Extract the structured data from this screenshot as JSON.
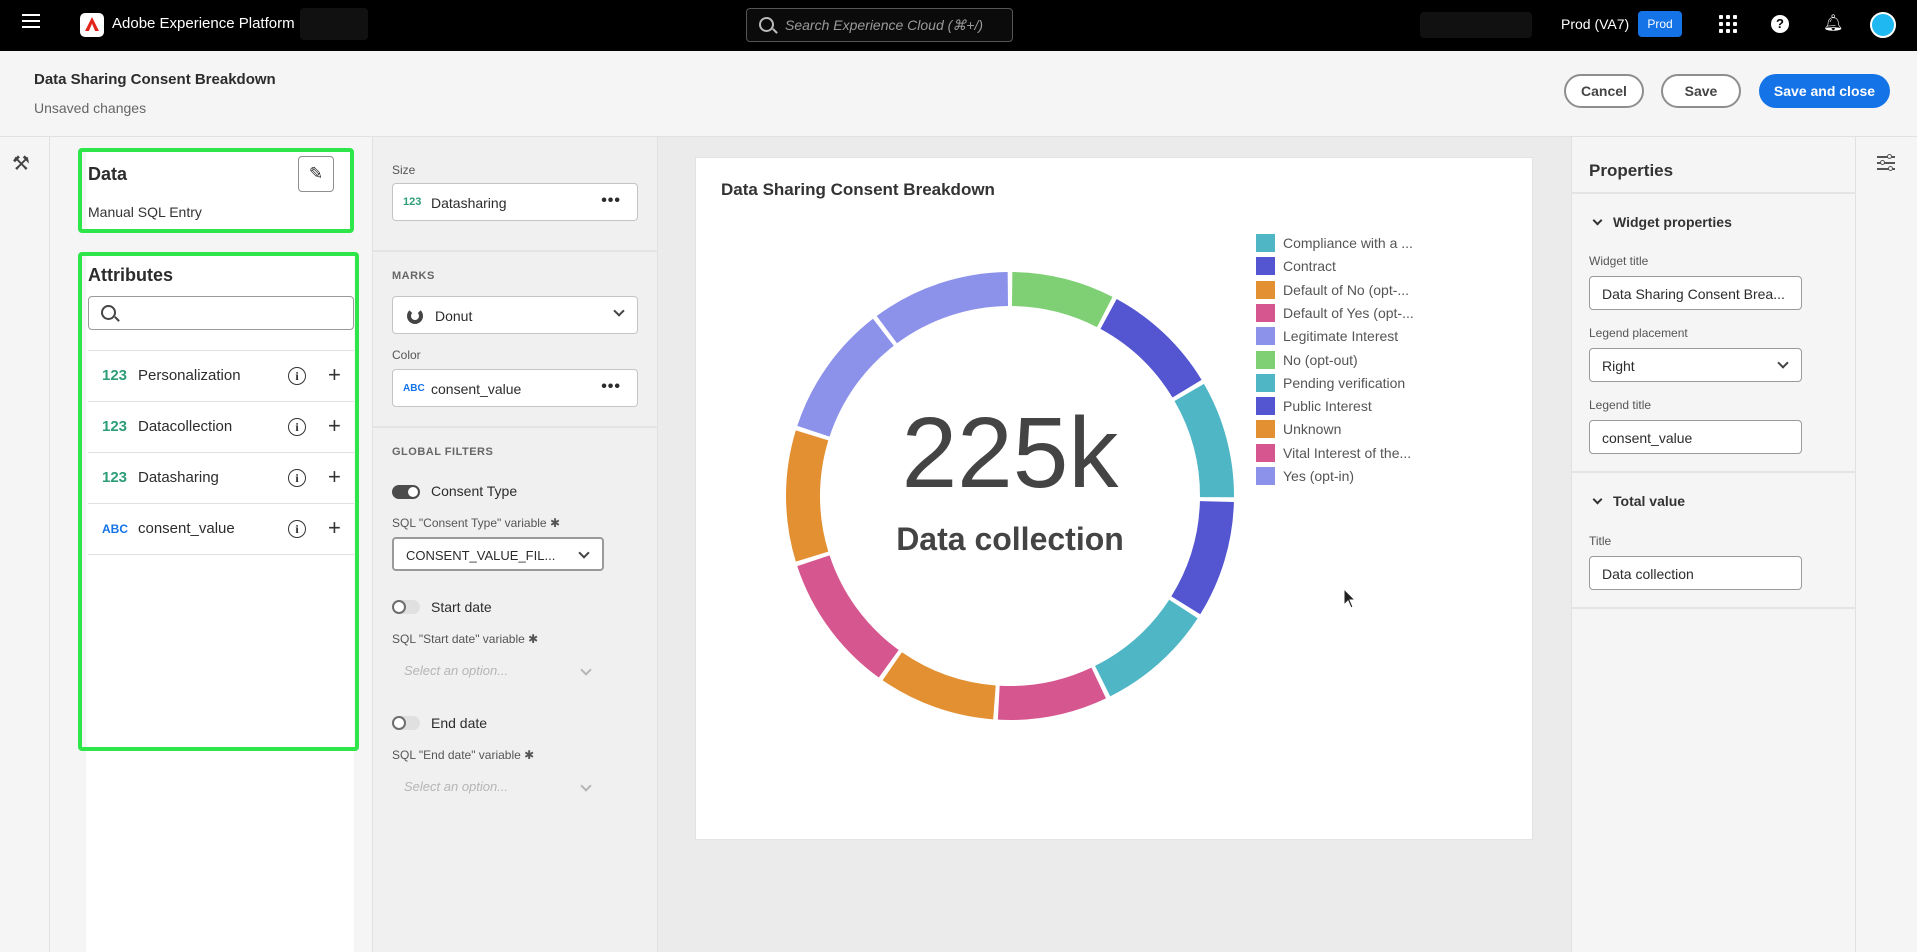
{
  "topbar": {
    "app_name": "Adobe Experience Platform",
    "search_placeholder": "Search Experience Cloud (⌘+/)",
    "org_name": "Prod (VA7)",
    "sandbox_badge": "Prod"
  },
  "header": {
    "title": "Data Sharing Consent Breakdown",
    "subtitle": "Unsaved changes",
    "cancel_label": "Cancel",
    "save_label": "Save",
    "save_close_label": "Save and close"
  },
  "data_panel": {
    "title": "Data",
    "source": "Manual SQL Entry",
    "attributes_title": "Attributes",
    "attributes": [
      {
        "type": "123",
        "name": "Personalization"
      },
      {
        "type": "123",
        "name": "Datacollection"
      },
      {
        "type": "123",
        "name": "Datasharing"
      },
      {
        "type": "ABC",
        "name": "consent_value"
      }
    ]
  },
  "config": {
    "size_label": "Size",
    "size_type": "123",
    "size_value": "Datasharing",
    "marks_label": "MARKS",
    "marks_value": "Donut",
    "color_label": "Color",
    "color_type": "ABC",
    "color_value": "consent_value",
    "filters_label": "GLOBAL FILTERS",
    "filters": [
      {
        "label": "Consent Type",
        "enabled": true,
        "var_label": "SQL \"Consent Type\" variable",
        "value": "CONSENT_VALUE_FIL..."
      },
      {
        "label": "Start date",
        "enabled": false,
        "var_label": "SQL \"Start date\" variable",
        "placeholder": "Select an option..."
      },
      {
        "label": "End date",
        "enabled": false,
        "var_label": "SQL \"End date\" variable",
        "placeholder": "Select an option..."
      }
    ]
  },
  "chart_data": {
    "type": "pie",
    "title": "Data Sharing Consent Breakdown",
    "center_value": "225k",
    "center_label": "Data collection",
    "legend_placement": "right",
    "categories": [
      "Compliance with a ...",
      "Contract",
      "Default of No (opt-...",
      "Default of Yes (opt-...",
      "Legitimate Interest",
      "No (opt-out)",
      "Pending verification",
      "Public Interest",
      "Unknown",
      "Vital Interest of the...",
      "Yes (opt-in)"
    ],
    "colors": [
      "#4fb6c6",
      "#5355d1",
      "#e39032",
      "#d65790",
      "#8c91ea",
      "#7fcf74",
      "#4fb6c6",
      "#5355d1",
      "#e39032",
      "#d65790",
      "#8c91ea"
    ],
    "segments": [
      {
        "category": "No (opt-out)",
        "color": "#7fcf74",
        "value": 7.5
      },
      {
        "category": "Public Interest",
        "color": "#5355d1",
        "value": 8.5
      },
      {
        "category": "Pending verification",
        "color": "#4fb6c6",
        "value": 8.5
      },
      {
        "category": "Contract",
        "color": "#5355d1",
        "value": 8.5
      },
      {
        "category": "Compliance with a ...",
        "color": "#4fb6c6",
        "value": 8.5
      },
      {
        "category": "Default of Yes (opt-...",
        "color": "#d65790",
        "value": 8.0
      },
      {
        "category": "Unknown",
        "color": "#e39032",
        "value": 8.5
      },
      {
        "category": "Vital Interest of the...",
        "color": "#d65790",
        "value": 10.0
      },
      {
        "category": "Default of No (opt-...",
        "color": "#e39032",
        "value": 9.5
      },
      {
        "category": "Yes (opt-in)",
        "color": "#8c91ea",
        "value": 9.5
      },
      {
        "category": "Legitimate Interest",
        "color": "#8c91ea",
        "value": 10.0
      }
    ]
  },
  "properties": {
    "title": "Properties",
    "widget_section": "Widget properties",
    "widget_title_label": "Widget title",
    "widget_title_value": "Data Sharing Consent Brea...",
    "legend_placement_label": "Legend placement",
    "legend_placement_value": "Right",
    "legend_title_label": "Legend title",
    "legend_title_value": "consent_value",
    "total_section": "Total value",
    "total_title_label": "Title",
    "total_title_value": "Data collection"
  }
}
